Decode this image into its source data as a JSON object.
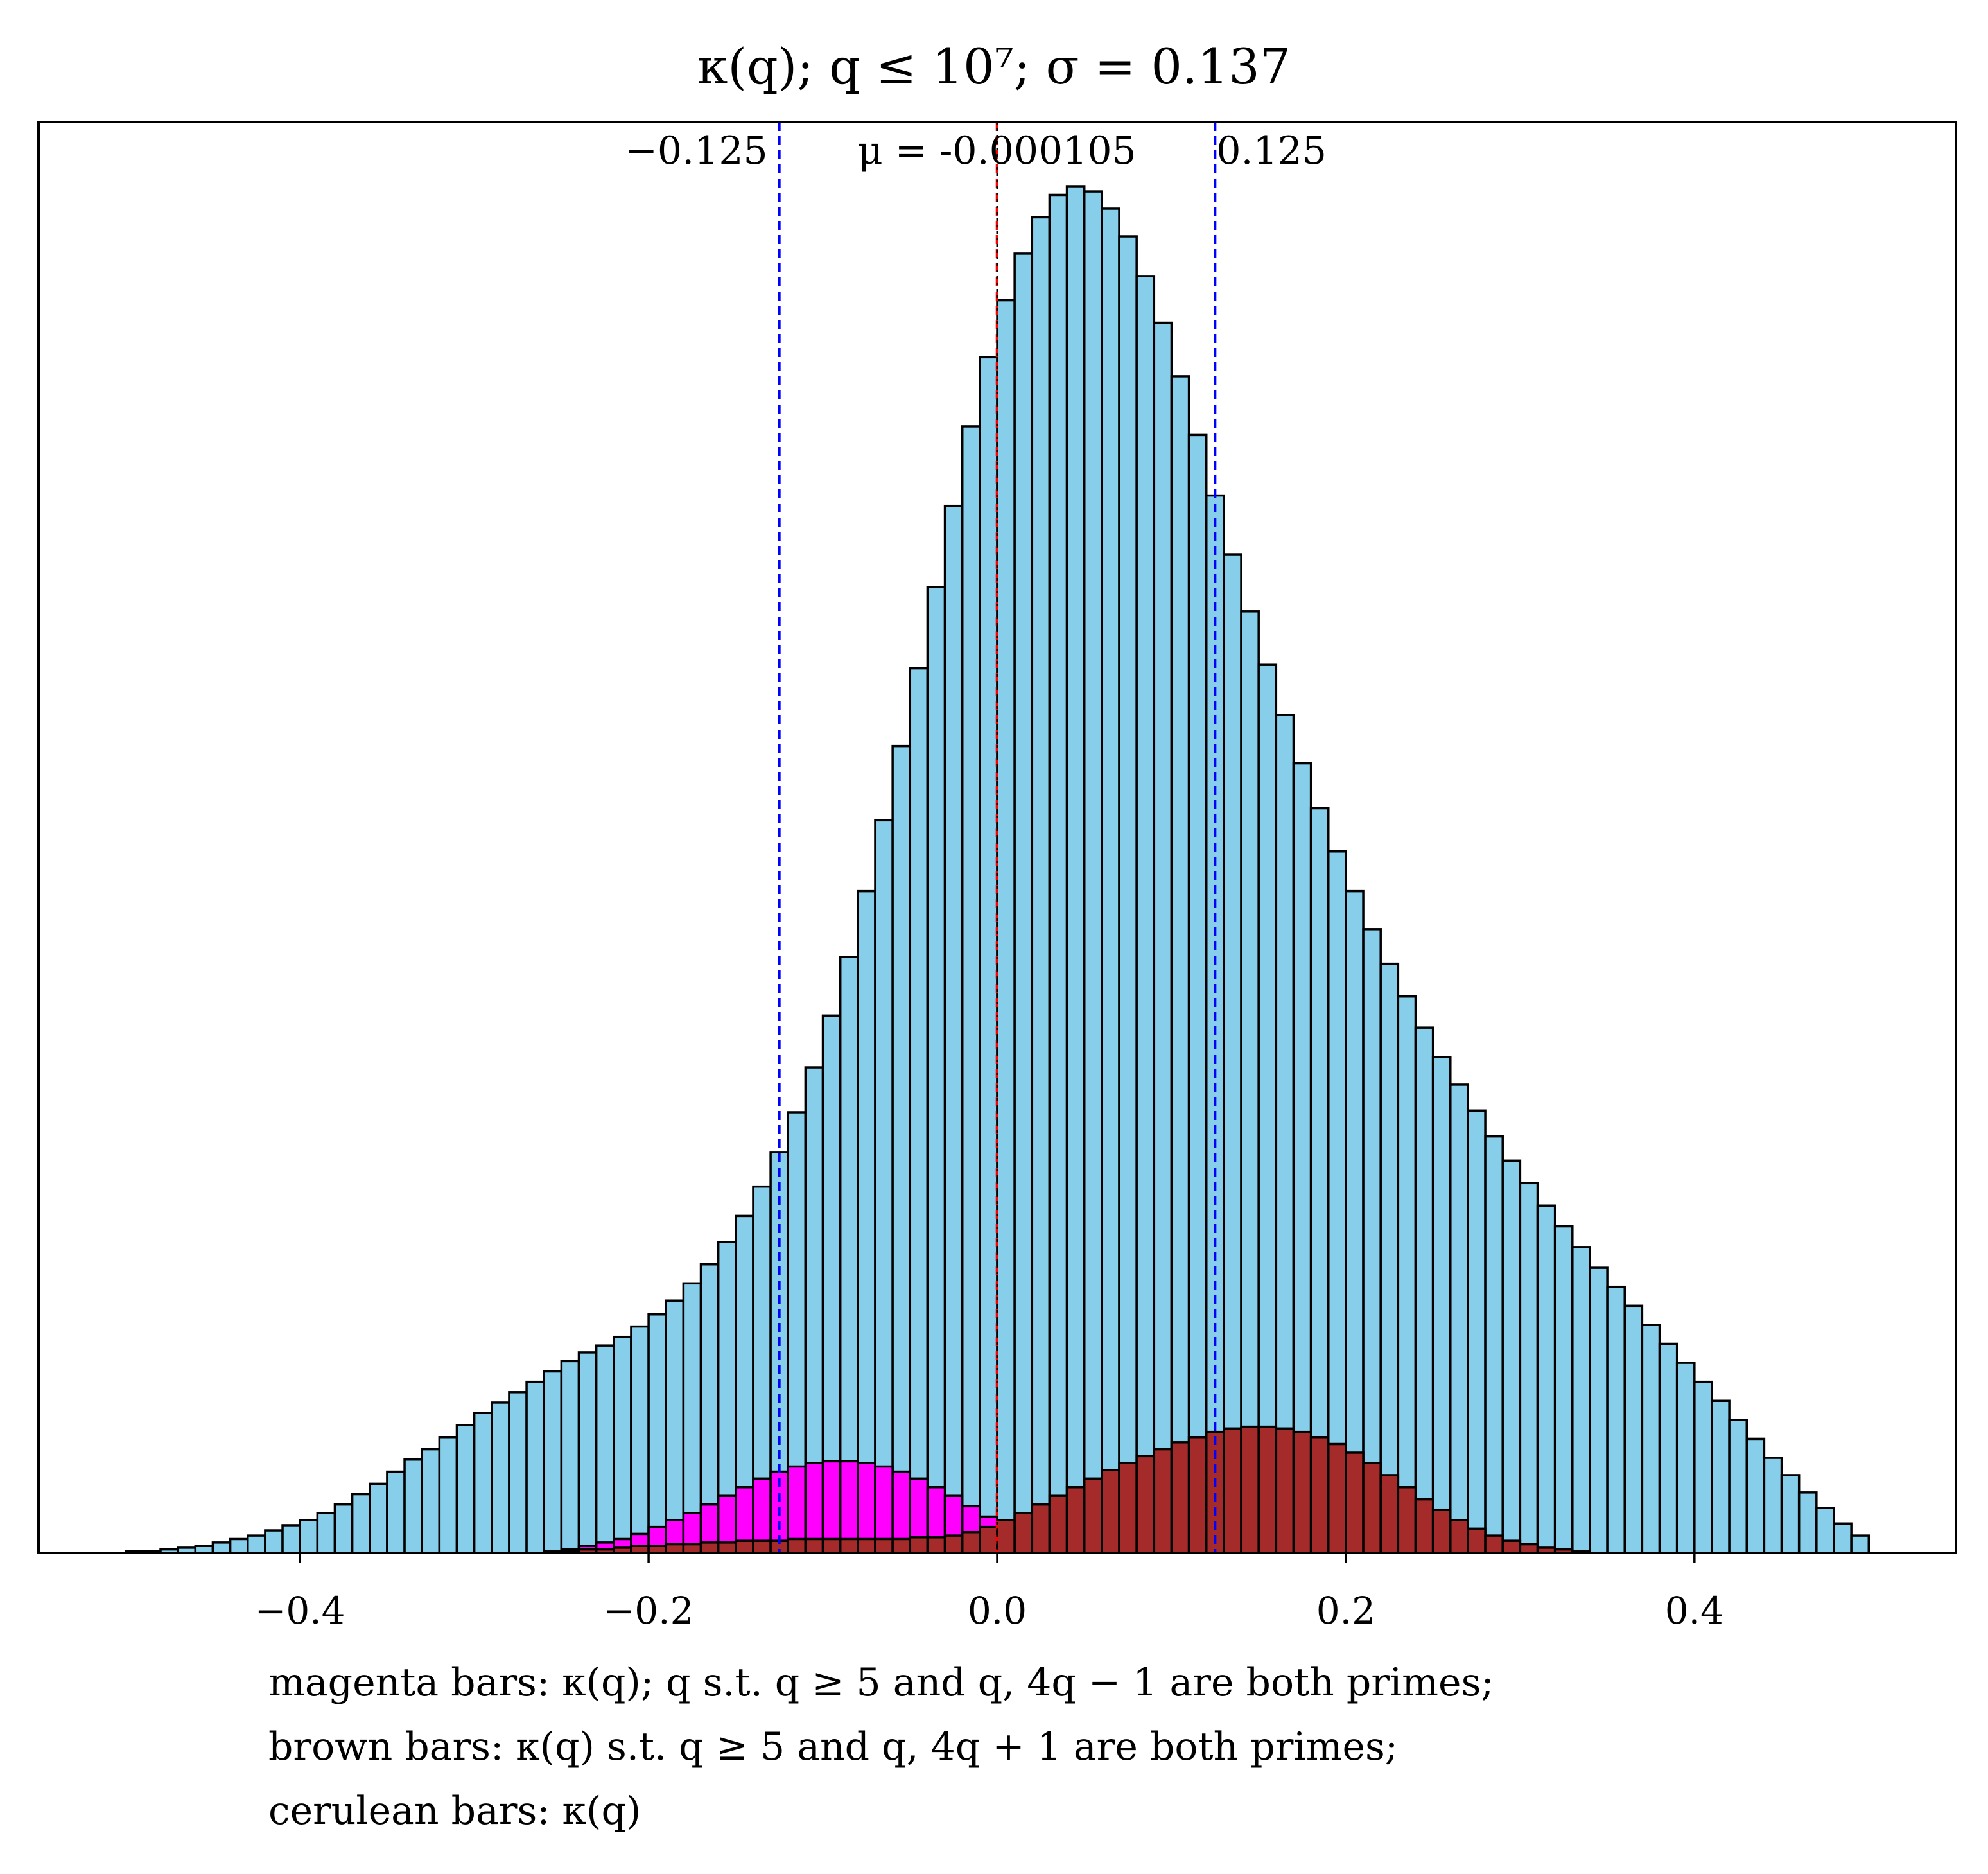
{
  "chart_data": {
    "type": "bar",
    "title": "κ(q); q ≤ 10⁷; σ = 0.137",
    "xlabel": "",
    "ylabel": "",
    "xlim": [
      -0.55,
      0.55
    ],
    "xticks": [
      -0.4,
      -0.2,
      0.0,
      0.2,
      0.4
    ],
    "xtick_labels": [
      "−0.4",
      "−0.2",
      "0.0",
      "0.2",
      "0.4"
    ],
    "yticks_shown": false,
    "grid": false,
    "ylim": [
      0,
      1.0
    ],
    "bin_width": 0.01,
    "x_centers": [
      -0.495,
      -0.485,
      -0.475,
      -0.465,
      -0.455,
      -0.445,
      -0.435,
      -0.425,
      -0.415,
      -0.405,
      -0.395,
      -0.385,
      -0.375,
      -0.365,
      -0.355,
      -0.345,
      -0.335,
      -0.325,
      -0.315,
      -0.305,
      -0.295,
      -0.285,
      -0.275,
      -0.265,
      -0.255,
      -0.245,
      -0.235,
      -0.225,
      -0.215,
      -0.205,
      -0.195,
      -0.185,
      -0.175,
      -0.165,
      -0.155,
      -0.145,
      -0.135,
      -0.125,
      -0.115,
      -0.105,
      -0.095,
      -0.085,
      -0.075,
      -0.065,
      -0.055,
      -0.045,
      -0.035,
      -0.025,
      -0.015,
      -0.005,
      0.005,
      0.015,
      0.025,
      0.035,
      0.045,
      0.055,
      0.065,
      0.075,
      0.085,
      0.095,
      0.105,
      0.115,
      0.125,
      0.135,
      0.145,
      0.155,
      0.165,
      0.175,
      0.185,
      0.195,
      0.205,
      0.215,
      0.225,
      0.235,
      0.245,
      0.255,
      0.265,
      0.275,
      0.285,
      0.295,
      0.305,
      0.315,
      0.325,
      0.335,
      0.345,
      0.355,
      0.365,
      0.375,
      0.385,
      0.395,
      0.405,
      0.415,
      0.425,
      0.435,
      0.445,
      0.455,
      0.465,
      0.475,
      0.485,
      0.495
    ],
    "series": [
      {
        "name": "cerulean bars",
        "color": "#87CEEB",
        "values": [
          0.001,
          0.001,
          0.002,
          0.003,
          0.004,
          0.006,
          0.008,
          0.01,
          0.013,
          0.016,
          0.019,
          0.023,
          0.028,
          0.034,
          0.04,
          0.047,
          0.054,
          0.06,
          0.067,
          0.074,
          0.081,
          0.087,
          0.093,
          0.099,
          0.105,
          0.111,
          0.116,
          0.12,
          0.125,
          0.131,
          0.138,
          0.146,
          0.156,
          0.167,
          0.18,
          0.195,
          0.212,
          0.232,
          0.255,
          0.281,
          0.311,
          0.345,
          0.383,
          0.424,
          0.467,
          0.512,
          0.559,
          0.606,
          0.652,
          0.692,
          0.725,
          0.752,
          0.773,
          0.786,
          0.791,
          0.788,
          0.778,
          0.762,
          0.739,
          0.712,
          0.681,
          0.647,
          0.612,
          0.578,
          0.545,
          0.514,
          0.485,
          0.457,
          0.431,
          0.406,
          0.383,
          0.361,
          0.341,
          0.322,
          0.304,
          0.287,
          0.271,
          0.256,
          0.241,
          0.227,
          0.214,
          0.201,
          0.189,
          0.177,
          0.165,
          0.154,
          0.143,
          0.132,
          0.121,
          0.11,
          0.099,
          0.088,
          0.077,
          0.066,
          0.055,
          0.045,
          0.035,
          0.026,
          0.017,
          0.01
        ]
      },
      {
        "name": "magenta bars",
        "color": "#FF00FF",
        "values": [
          0,
          0,
          0,
          0,
          0,
          0,
          0,
          0,
          0,
          0,
          0,
          0,
          0,
          0,
          0,
          0,
          0,
          0,
          0,
          0,
          0,
          0,
          0,
          0,
          0.001,
          0.002,
          0.004,
          0.006,
          0.008,
          0.011,
          0.015,
          0.019,
          0.023,
          0.028,
          0.033,
          0.038,
          0.043,
          0.047,
          0.05,
          0.052,
          0.053,
          0.053,
          0.052,
          0.05,
          0.047,
          0.043,
          0.038,
          0.033,
          0.027,
          0.021,
          0.015,
          0.01,
          0.006,
          0.003,
          0.001,
          0,
          0,
          0,
          0,
          0,
          0,
          0,
          0,
          0,
          0,
          0,
          0,
          0,
          0,
          0,
          0,
          0,
          0,
          0,
          0,
          0,
          0,
          0,
          0,
          0,
          0,
          0,
          0,
          0,
          0,
          0,
          0,
          0,
          0,
          0,
          0,
          0,
          0,
          0,
          0,
          0,
          0,
          0,
          0,
          0
        ]
      },
      {
        "name": "brown bars",
        "color": "#A52A2A",
        "values": [
          0,
          0,
          0,
          0,
          0,
          0,
          0,
          0,
          0,
          0,
          0,
          0,
          0,
          0,
          0,
          0,
          0,
          0,
          0,
          0,
          0,
          0,
          0,
          0,
          0.001,
          0.001,
          0.002,
          0.002,
          0.003,
          0.004,
          0.004,
          0.005,
          0.005,
          0.006,
          0.006,
          0.007,
          0.007,
          0.007,
          0.008,
          0.008,
          0.008,
          0.008,
          0.008,
          0.008,
          0.008,
          0.009,
          0.009,
          0.01,
          0.012,
          0.015,
          0.019,
          0.023,
          0.028,
          0.033,
          0.038,
          0.043,
          0.048,
          0.052,
          0.056,
          0.06,
          0.064,
          0.067,
          0.07,
          0.072,
          0.073,
          0.073,
          0.072,
          0.07,
          0.067,
          0.063,
          0.058,
          0.052,
          0.045,
          0.038,
          0.031,
          0.025,
          0.019,
          0.014,
          0.01,
          0.007,
          0.005,
          0.003,
          0.002,
          0.001,
          0,
          0,
          0,
          0,
          0,
          0,
          0,
          0,
          0,
          0,
          0,
          0,
          0,
          0,
          0,
          0
        ]
      }
    ],
    "vlines": [
      {
        "x": -0.125,
        "color": "#0000FF",
        "style": "dashed",
        "label": "−0.125",
        "label_side": "left"
      },
      {
        "x": 0.125,
        "color": "#0000FF",
        "style": "dashed",
        "label": "0.125",
        "label_side": "right"
      },
      {
        "x": -0.000105,
        "color": "#FF0000",
        "style": "dashed",
        "label": "μ = -0.000105",
        "label_side": "center"
      },
      {
        "x": 0.0,
        "color": "#000000",
        "style": "dotted",
        "label": "",
        "label_side": "none"
      }
    ],
    "legend_placement": "below-axes",
    "legend_lines": [
      "magenta bars: κ(q); q s.t. q ≥ 5 and q, 4q − 1 are both primes;",
      "brown bars: κ(q) s.t. q ≥ 5 and q, 4q + 1 are both primes;",
      "cerulean bars: κ(q)"
    ]
  }
}
